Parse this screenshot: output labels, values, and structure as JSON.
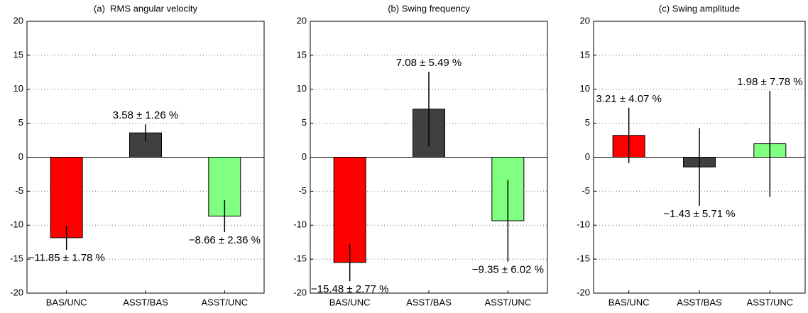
{
  "chart_data": [
    {
      "type": "bar",
      "title": "(a)  RMS angular velocity",
      "categories": [
        "BAS/UNC",
        "ASST/BAS",
        "ASST/UNC"
      ],
      "values": [
        -11.85,
        3.58,
        -8.66
      ],
      "errors": [
        1.78,
        1.26,
        2.36
      ],
      "value_labels": [
        "−11.85 ± 1.78 %",
        "3.58 ± 1.26 %",
        "−8.66 ± 2.36 %"
      ],
      "colors": [
        "#ff0000",
        "#404040",
        "#80ff80"
      ],
      "ylim": [
        -20,
        20
      ],
      "yticks": [
        -20,
        -15,
        -10,
        -5,
        0,
        5,
        10,
        15,
        20
      ],
      "grid": true
    },
    {
      "type": "bar",
      "title": "(b) Swing frequency",
      "categories": [
        "BAS/UNC",
        "ASST/BAS",
        "ASST/UNC"
      ],
      "values": [
        -15.48,
        7.08,
        -9.35
      ],
      "errors": [
        2.77,
        5.49,
        6.02
      ],
      "value_labels": [
        "−15.48 ± 2.77 %",
        "7.08 ± 5.49 %",
        "−9.35 ± 6.02 %"
      ],
      "colors": [
        "#ff0000",
        "#404040",
        "#80ff80"
      ],
      "ylim": [
        -20,
        20
      ],
      "yticks": [
        -20,
        -15,
        -10,
        -5,
        0,
        5,
        10,
        15,
        20
      ],
      "grid": true
    },
    {
      "type": "bar",
      "title": "(c) Swing amplitude",
      "categories": [
        "BAS/UNC",
        "ASST/BAS",
        "ASST/UNC"
      ],
      "values": [
        3.21,
        -1.43,
        1.98
      ],
      "errors": [
        4.07,
        5.71,
        7.78
      ],
      "value_labels": [
        "3.21 ± 4.07 %",
        "−1.43 ± 5.71 %",
        "1.98 ± 7.78 %"
      ],
      "colors": [
        "#ff0000",
        "#404040",
        "#80ff80"
      ],
      "ylim": [
        -20,
        20
      ],
      "yticks": [
        -20,
        -15,
        -10,
        -5,
        0,
        5,
        10,
        15,
        20
      ],
      "grid": true
    }
  ]
}
